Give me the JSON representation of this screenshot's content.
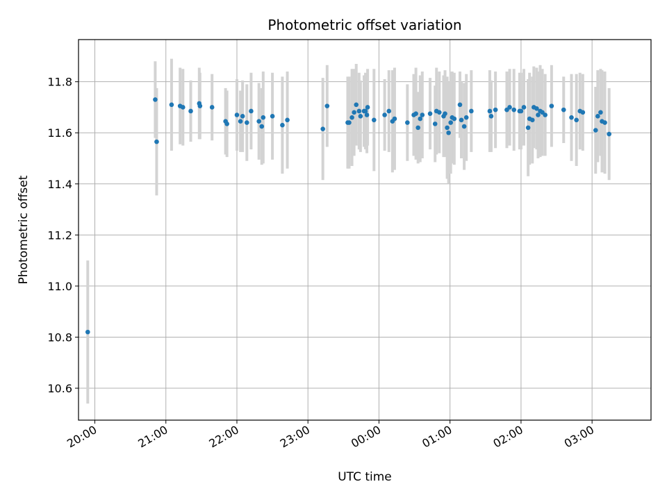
{
  "chart_data": {
    "type": "scatter",
    "title": "Photometric offset variation",
    "xlabel": "UTC time",
    "ylabel": "Photometric offset",
    "x_unit": "hours (UTC, past 00:00 = 24+)",
    "xlim": [
      19.77,
      27.83
    ],
    "ylim": [
      10.475,
      11.965
    ],
    "x_ticks": [
      20,
      21,
      22,
      23,
      24,
      25,
      26,
      27
    ],
    "x_tick_labels": [
      "20:00",
      "21:00",
      "22:00",
      "23:00",
      "00:00",
      "01:00",
      "02:00",
      "03:00"
    ],
    "y_ticks": [
      10.6,
      10.8,
      11.0,
      11.2,
      11.4,
      11.6,
      11.8
    ],
    "y_tick_labels": [
      "10.6",
      "10.8",
      "11.0",
      "11.2",
      "11.4",
      "11.6",
      "11.8"
    ],
    "grid": true,
    "colors": {
      "point": "#1f77b4",
      "errorbar": "#d3d3d3",
      "grid": "#b0b0b0"
    },
    "series": [
      {
        "marker": "point-with-errorbar",
        "x": [
          19.9,
          20.85,
          20.87,
          21.08,
          21.2,
          21.24,
          21.35,
          21.47,
          21.48,
          21.65,
          21.84,
          21.86,
          22.0,
          22.05,
          22.08,
          22.14,
          22.2,
          22.31,
          22.35,
          22.37,
          22.5,
          22.64,
          22.71,
          23.21,
          23.27,
          23.56,
          23.58,
          23.62,
          23.65,
          23.68,
          23.72,
          23.74,
          23.79,
          23.81,
          23.83,
          23.84,
          23.93,
          24.08,
          24.14,
          24.19,
          24.22,
          24.4,
          24.49,
          24.52,
          24.55,
          24.58,
          24.61,
          24.72,
          24.79,
          24.81,
          24.85,
          24.91,
          24.93,
          24.96,
          24.98,
          25.01,
          25.03,
          25.06,
          25.14,
          25.16,
          25.2,
          25.23,
          25.3,
          25.56,
          25.58,
          25.64,
          25.8,
          25.84,
          25.9,
          25.98,
          26.0,
          26.04,
          26.1,
          26.12,
          26.16,
          26.18,
          26.22,
          26.24,
          26.27,
          26.3,
          26.34,
          26.43,
          26.6,
          26.71,
          26.78,
          26.83,
          26.87,
          27.05,
          27.08,
          27.12,
          27.14,
          27.18,
          27.24
        ],
        "y": [
          10.82,
          11.73,
          11.565,
          11.71,
          11.705,
          11.7,
          11.685,
          11.715,
          11.705,
          11.7,
          11.645,
          11.635,
          11.67,
          11.645,
          11.665,
          11.64,
          11.685,
          11.645,
          11.625,
          11.66,
          11.665,
          11.63,
          11.65,
          11.615,
          11.705,
          11.64,
          11.64,
          11.66,
          11.68,
          11.71,
          11.685,
          11.665,
          11.685,
          11.685,
          11.67,
          11.7,
          11.65,
          11.67,
          11.685,
          11.645,
          11.655,
          11.64,
          11.67,
          11.675,
          11.62,
          11.655,
          11.67,
          11.675,
          11.635,
          11.685,
          11.68,
          11.665,
          11.675,
          11.62,
          11.6,
          11.64,
          11.66,
          11.655,
          11.71,
          11.65,
          11.625,
          11.66,
          11.685,
          11.685,
          11.665,
          11.69,
          11.69,
          11.7,
          11.69,
          11.685,
          11.685,
          11.7,
          11.62,
          11.655,
          11.65,
          11.7,
          11.695,
          11.67,
          11.685,
          11.68,
          11.67,
          11.705,
          11.69,
          11.66,
          11.65,
          11.685,
          11.68,
          11.61,
          11.665,
          11.68,
          11.645,
          11.64,
          11.595
        ],
        "yerr": [
          0.28,
          0.15,
          0.21,
          0.18,
          0.15,
          0.15,
          0.12,
          0.14,
          0.13,
          0.13,
          0.13,
          0.13,
          0.14,
          0.12,
          0.14,
          0.15,
          0.15,
          0.15,
          0.15,
          0.18,
          0.17,
          0.19,
          0.19,
          0.2,
          0.16,
          0.18,
          0.18,
          0.19,
          0.17,
          0.16,
          0.15,
          0.14,
          0.14,
          0.15,
          0.15,
          0.15,
          0.2,
          0.14,
          0.16,
          0.2,
          0.2,
          0.15,
          0.16,
          0.18,
          0.14,
          0.17,
          0.17,
          0.14,
          0.15,
          0.17,
          0.16,
          0.16,
          0.17,
          0.2,
          0.2,
          0.2,
          0.18,
          0.18,
          0.13,
          0.15,
          0.17,
          0.17,
          0.16,
          0.16,
          0.14,
          0.15,
          0.15,
          0.15,
          0.16,
          0.15,
          0.15,
          0.15,
          0.19,
          0.18,
          0.17,
          0.16,
          0.16,
          0.17,
          0.18,
          0.17,
          0.16,
          0.16,
          0.13,
          0.17,
          0.18,
          0.15,
          0.15,
          0.17,
          0.18,
          0.17,
          0.2,
          0.2,
          0.18
        ]
      }
    ]
  }
}
